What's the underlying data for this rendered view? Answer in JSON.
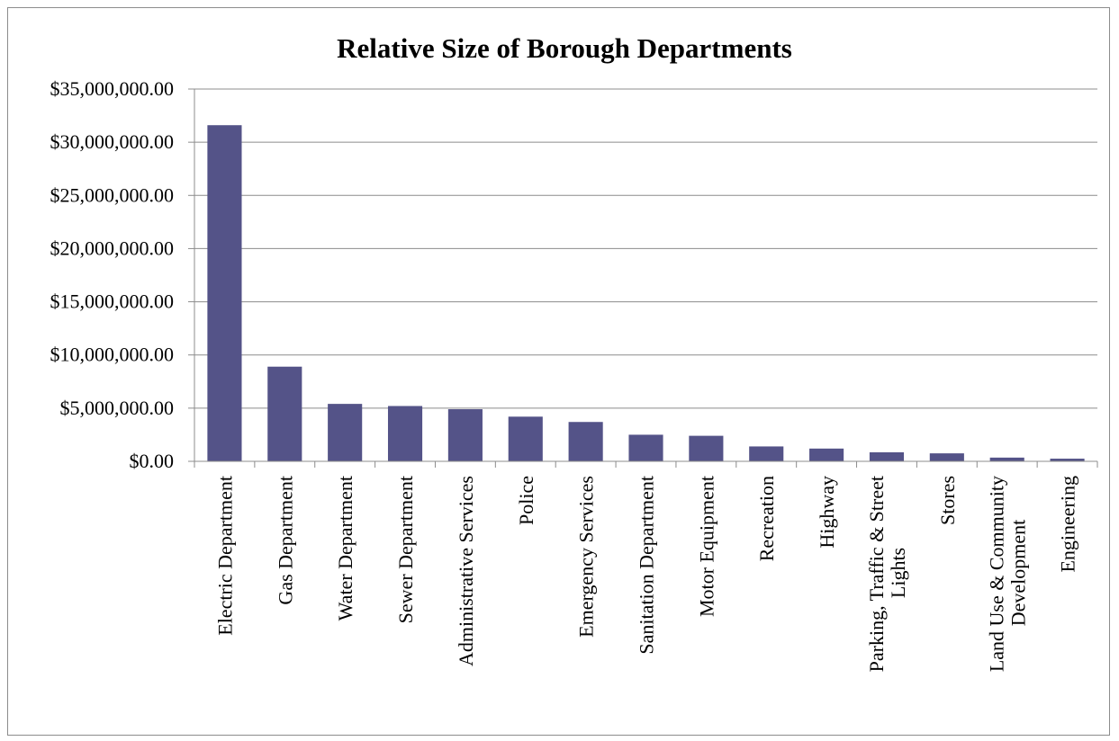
{
  "chart_data": {
    "type": "bar",
    "title": "Relative Size of Borough Departments",
    "xlabel": "",
    "ylabel": "",
    "ylim": [
      0,
      35000000
    ],
    "yticks": [
      0,
      5000000,
      10000000,
      15000000,
      20000000,
      25000000,
      30000000,
      35000000
    ],
    "ytick_labels": [
      "$0.00",
      "$5,000,000.00",
      "$10,000,000.00",
      "$15,000,000.00",
      "$20,000,000.00",
      "$25,000,000.00",
      "$30,000,000.00",
      "$35,000,000.00"
    ],
    "grid": true,
    "legend": "none",
    "bar_color": "#545388",
    "categories": [
      [
        "Electric Department"
      ],
      [
        "Gas Department"
      ],
      [
        "Water Department"
      ],
      [
        "Sewer Department"
      ],
      [
        "Administrative Services"
      ],
      [
        "Police"
      ],
      [
        "Emergency Services"
      ],
      [
        "Sanitation Department"
      ],
      [
        "Motor Equipment"
      ],
      [
        "Recreation"
      ],
      [
        "Highway"
      ],
      [
        "Parking, Traffic & Street",
        "Lights"
      ],
      [
        "Stores"
      ],
      [
        "Land Use & Community",
        "Development"
      ],
      [
        "Engineering"
      ]
    ],
    "values": [
      31600000,
      8900000,
      5400000,
      5200000,
      4900000,
      4200000,
      3700000,
      2500000,
      2400000,
      1400000,
      1200000,
      850000,
      750000,
      350000,
      250000
    ]
  }
}
